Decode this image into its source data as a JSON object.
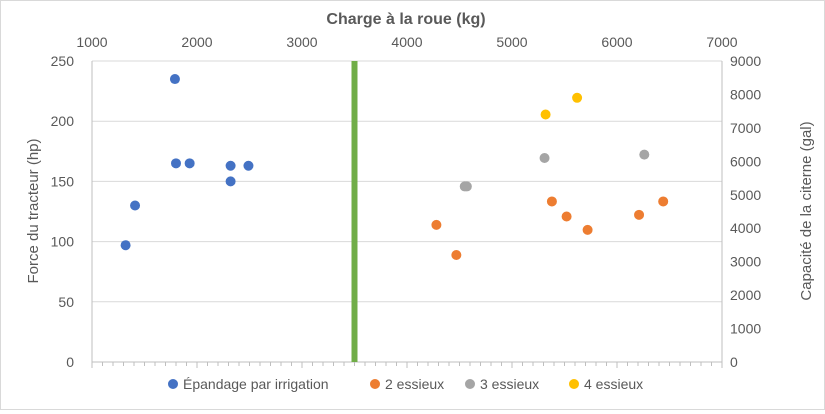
{
  "chart_data": {
    "type": "scatter",
    "title": "Charge à la roue (kg)",
    "x_axis": {
      "label": "Charge à la roue (kg)",
      "position": "top",
      "range": [
        1000,
        7000
      ],
      "ticks": [
        "1000",
        "2000",
        "3000",
        "4000",
        "5000",
        "6000",
        "7000"
      ],
      "tick_values": [
        1000,
        2000,
        3000,
        4000,
        5000,
        6000,
        7000
      ]
    },
    "y_left": {
      "label": "Force du tracteur (hp)",
      "range": [
        0,
        250
      ],
      "ticks": [
        "0",
        "50",
        "100",
        "150",
        "200",
        "250"
      ],
      "tick_values": [
        0,
        50,
        100,
        150,
        200,
        250
      ]
    },
    "y_right": {
      "label": "Capacité de la citerne (gal)",
      "range": [
        0,
        9000
      ],
      "ticks": [
        "0",
        "1000",
        "2000",
        "3000",
        "4000",
        "5000",
        "6000",
        "7000",
        "8000",
        "9000"
      ],
      "tick_values": [
        0,
        1000,
        2000,
        3000,
        4000,
        5000,
        6000,
        7000,
        8000,
        9000
      ]
    },
    "reference_line": {
      "x": 3500,
      "color": "#70ad47"
    },
    "legend_position": "bottom",
    "series": [
      {
        "name": "Épandage par irrigation",
        "axis": "left",
        "color": "#4472c4",
        "points": [
          {
            "x": 1320,
            "y": 97
          },
          {
            "x": 1410,
            "y": 130
          },
          {
            "x": 1790,
            "y": 235
          },
          {
            "x": 1800,
            "y": 165
          },
          {
            "x": 1930,
            "y": 165
          },
          {
            "x": 2320,
            "y": 163
          },
          {
            "x": 2320,
            "y": 150
          },
          {
            "x": 2490,
            "y": 163
          }
        ]
      },
      {
        "name": "2 essieux",
        "axis": "right",
        "color": "#ed7d31",
        "points": [
          {
            "x": 4280,
            "y": 4100
          },
          {
            "x": 4470,
            "y": 3200
          },
          {
            "x": 5380,
            "y": 4800
          },
          {
            "x": 5520,
            "y": 4350
          },
          {
            "x": 5720,
            "y": 3950
          },
          {
            "x": 6210,
            "y": 4400
          },
          {
            "x": 6440,
            "y": 4800
          }
        ]
      },
      {
        "name": "3 essieux",
        "axis": "right",
        "color": "#a5a5a5",
        "points": [
          {
            "x": 4550,
            "y": 5250
          },
          {
            "x": 4570,
            "y": 5250
          },
          {
            "x": 5310,
            "y": 6100
          },
          {
            "x": 6260,
            "y": 6200
          }
        ]
      },
      {
        "name": "4 essieux",
        "axis": "right",
        "color": "#ffc000",
        "points": [
          {
            "x": 5320,
            "y": 7400
          },
          {
            "x": 5620,
            "y": 7900
          }
        ]
      }
    ]
  }
}
